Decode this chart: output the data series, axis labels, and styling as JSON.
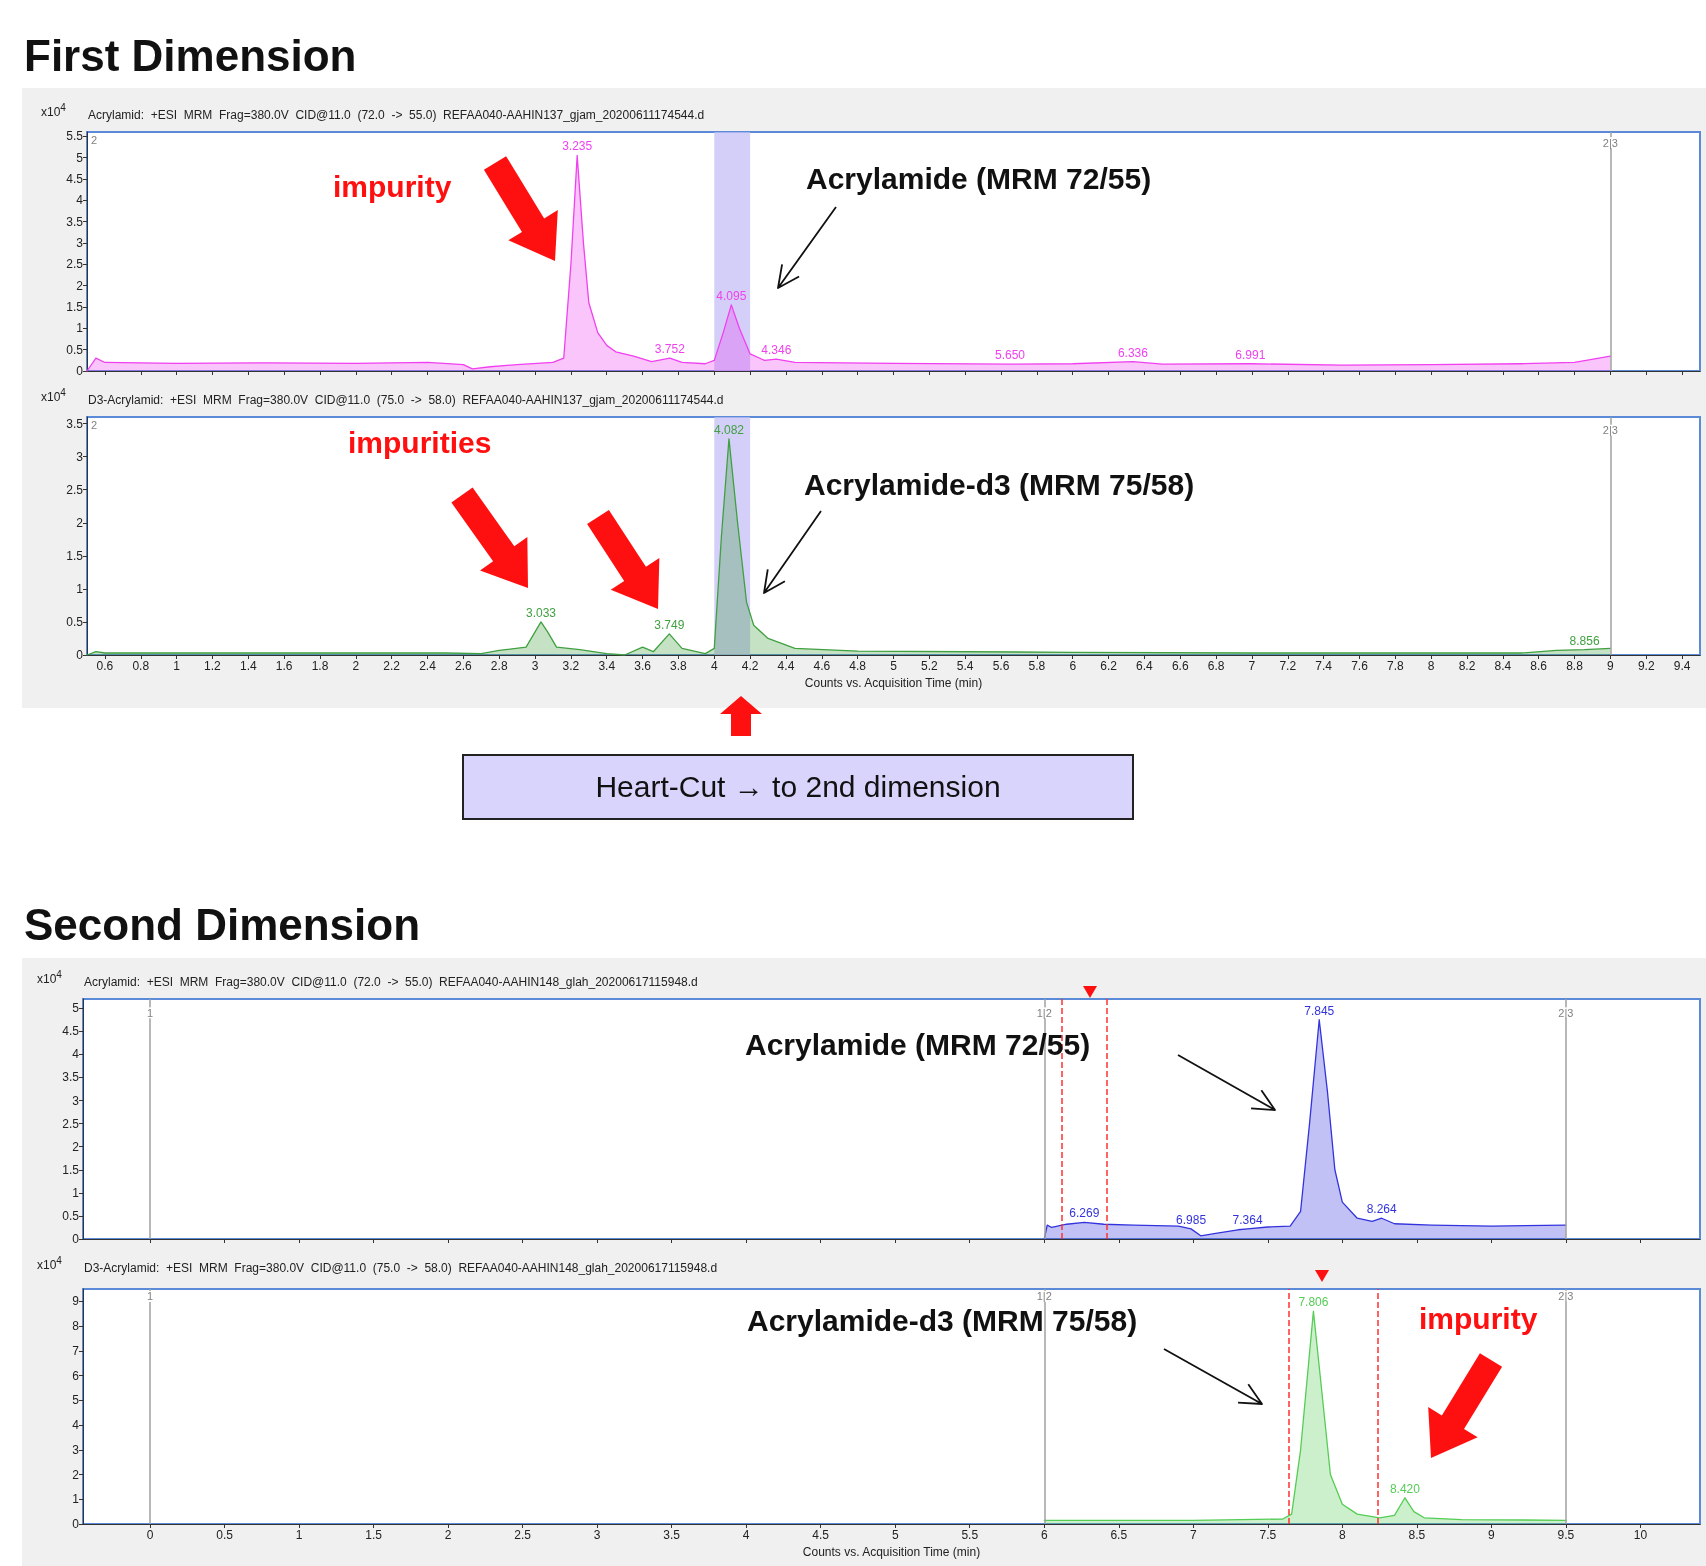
{
  "chart_data": [
    {
      "type": "area",
      "title": "Acrylamid:  +ESI  MRM  Frag=380.0V  CID@11.0  (72.0  ->  55.0)  REFAA040-AAHIN137_gjam_20200611174544.d",
      "ylabel": "x10$^{4}$",
      "series": [
        {
          "color": "#f040f0",
          "x": [
            0.5,
            0.55,
            0.6,
            1.0,
            1.5,
            2.0,
            2.4,
            2.6,
            2.65,
            2.75,
            2.9,
            3.1,
            3.16,
            3.2,
            3.235,
            3.27,
            3.3,
            3.35,
            3.4,
            3.45,
            3.55,
            3.65,
            3.752,
            3.82,
            3.95,
            4.0,
            4.05,
            4.095,
            4.14,
            4.2,
            4.28,
            4.346,
            4.45,
            5.0,
            5.65,
            6.0,
            6.336,
            6.5,
            6.991,
            7.5,
            8.0,
            8.5,
            8.8,
            9.0
          ],
          "values": [
            0,
            0.3,
            0.2,
            0.18,
            0.19,
            0.18,
            0.2,
            0.15,
            0.05,
            0.1,
            0.15,
            0.2,
            0.3,
            2.5,
            5.05,
            3.0,
            1.6,
            0.9,
            0.6,
            0.45,
            0.35,
            0.22,
            0.3,
            0.2,
            0.17,
            0.25,
            0.9,
            1.55,
            1.0,
            0.4,
            0.25,
            0.28,
            0.2,
            0.18,
            0.16,
            0.17,
            0.22,
            0.16,
            0.17,
            0.14,
            0.15,
            0.17,
            0.2,
            0.35
          ]
        }
      ],
      "xlim": [
        0.5,
        9.5
      ],
      "xticks": [
        0.6,
        0.8,
        1,
        1.2,
        1.4,
        1.6,
        1.8,
        2,
        2.2,
        2.4,
        2.6,
        2.8,
        3,
        3.2,
        3.4,
        3.6,
        3.8,
        4,
        4.2,
        4.4,
        4.6,
        4.8,
        5,
        5.2,
        5.4,
        5.6,
        5.8,
        6,
        6.2,
        6.4,
        6.6,
        6.8,
        7,
        7.2,
        7.4,
        7.6,
        7.8,
        8,
        8.2,
        8.4,
        8.6,
        8.8,
        9,
        9.2,
        9.4
      ],
      "ylim": [
        0,
        5.6
      ],
      "yticks": [
        0,
        0.5,
        1,
        1.5,
        2,
        2.5,
        3,
        3.5,
        4,
        4.5,
        5,
        5.5
      ],
      "tick_labels": "y",
      "ref_lines": [
        {
          "axis": "x",
          "value": 9,
          "color": "#a0a0a0"
        }
      ],
      "bands": [
        {
          "axis": "x",
          "from": 4.0,
          "to": 4.2,
          "color": "#c4bff5"
        }
      ],
      "annotations": [
        "First Dimension",
        "impurity",
        "Acrylamide (MRM 72/55)",
        "2",
        {
          "text": "2|3",
          "x": 9,
          "y": 5.35
        },
        {
          "text": "3.235",
          "x": 3.235,
          "y": 5.05
        },
        {
          "text": "3.752",
          "x": 3.752,
          "y": 0.3
        },
        {
          "text": "4.095",
          "x": 4.095,
          "y": 1.55
        },
        {
          "text": "4.346",
          "x": 4.346,
          "y": 0.28
        },
        {
          "text": "5.650",
          "x": 5.65,
          "y": 0.16
        },
        {
          "text": "6.336",
          "x": 6.336,
          "y": 0.22
        },
        {
          "text": "6.991",
          "x": 6.991,
          "y": 0.17
        }
      ]
    },
    {
      "type": "area",
      "title": "D3-Acrylamid:  +ESI  MRM  Frag=380.0V  CID@11.0  (75.0  ->  58.0)  REFAA040-AAHIN137_gjam_20200611174544.d",
      "ylabel": "x10$^{4}$",
      "xlabel": "Counts vs. Acquisition Time (min)",
      "series": [
        {
          "color": "#40a040",
          "x": [
            0.5,
            0.55,
            0.6,
            1.5,
            2.5,
            2.7,
            2.8,
            2.95,
            3.0,
            3.033,
            3.07,
            3.12,
            3.25,
            3.4,
            3.5,
            3.6,
            3.66,
            3.749,
            3.82,
            3.95,
            4.0,
            4.04,
            4.082,
            4.13,
            4.18,
            4.22,
            4.3,
            4.45,
            4.8,
            6.0,
            7.0,
            8.0,
            8.5,
            8.7,
            8.856,
            9.0
          ],
          "values": [
            0,
            0.05,
            0.03,
            0.03,
            0.03,
            0.02,
            0.07,
            0.12,
            0.35,
            0.5,
            0.35,
            0.12,
            0.08,
            0.02,
            0.0,
            0.12,
            0.05,
            0.32,
            0.1,
            0.02,
            0.1,
            1.8,
            3.27,
            2.0,
            0.8,
            0.45,
            0.25,
            0.1,
            0.06,
            0.04,
            0.03,
            0.03,
            0.03,
            0.07,
            0.08,
            0.1
          ]
        }
      ],
      "xlim": [
        0.5,
        9.5
      ],
      "xticks": [
        0.6,
        0.8,
        1,
        1.2,
        1.4,
        1.6,
        1.8,
        2,
        2.2,
        2.4,
        2.6,
        2.8,
        3,
        3.2,
        3.4,
        3.6,
        3.8,
        4,
        4.2,
        4.4,
        4.6,
        4.8,
        5,
        5.2,
        5.4,
        5.6,
        5.8,
        6,
        6.2,
        6.4,
        6.6,
        6.8,
        7,
        7.2,
        7.4,
        7.6,
        7.8,
        8,
        8.2,
        8.4,
        8.6,
        8.8,
        9,
        9.2,
        9.4
      ],
      "ylim": [
        0,
        3.6
      ],
      "yticks": [
        0,
        0.5,
        1,
        1.5,
        2,
        2.5,
        3,
        3.5
      ],
      "ref_lines": [
        {
          "axis": "x",
          "value": 9,
          "color": "#a0a0a0"
        }
      ],
      "bands": [
        {
          "axis": "x",
          "from": 4.0,
          "to": 4.2,
          "color": "#c4bff5"
        }
      ],
      "annotations": [
        "impurities",
        "Acrylamide-d3 (MRM 75/58)",
        "Heart-Cut → to 2nd dimension",
        "2",
        {
          "text": "2|3",
          "x": 9,
          "y": 3.4
        },
        {
          "text": "3.033",
          "x": 3.033,
          "y": 0.5
        },
        {
          "text": "3.749",
          "x": 3.749,
          "y": 0.32
        },
        {
          "text": "4.082",
          "x": 4.082,
          "y": 3.27
        },
        {
          "text": "8.856",
          "x": 8.856,
          "y": 0.08
        }
      ]
    },
    {
      "type": "area",
      "title": "Acrylamid:  +ESI  MRM  Frag=380.0V  CID@11.0  (72.0  ->  55.0)  REFAA040-AAHIN148_glah_20200617115948.d",
      "ylabel": "x10$^{4}$",
      "series": [
        {
          "color": "#3333dd",
          "x": [
            6.0,
            6.02,
            6.05,
            6.15,
            6.269,
            6.4,
            6.6,
            6.9,
            6.985,
            7.05,
            7.15,
            7.3,
            7.364,
            7.5,
            7.65,
            7.72,
            7.78,
            7.845,
            7.9,
            7.95,
            8.0,
            8.1,
            8.2,
            8.264,
            8.35,
            8.6,
            9.0,
            9.5
          ],
          "values": [
            0.0,
            0.3,
            0.25,
            0.32,
            0.36,
            0.32,
            0.3,
            0.28,
            0.22,
            0.07,
            0.12,
            0.2,
            0.22,
            0.26,
            0.28,
            0.6,
            2.5,
            4.75,
            3.2,
            1.5,
            0.8,
            0.45,
            0.38,
            0.45,
            0.33,
            0.3,
            0.28,
            0.3
          ]
        }
      ],
      "xlim": [
        -0.45,
        10.4
      ],
      "xticks": [
        0,
        0.5,
        1,
        1.5,
        2,
        2.5,
        3,
        3.5,
        4,
        4.5,
        5,
        5.5,
        6,
        6.5,
        7,
        7.5,
        8,
        8.5,
        9,
        9.5,
        10
      ],
      "ylim": [
        0,
        5.2
      ],
      "yticks": [
        0,
        0.5,
        1,
        1.5,
        2,
        2.5,
        3,
        3.5,
        4,
        4.5,
        5
      ],
      "tick_labels": "y",
      "ref_lines": [
        {
          "axis": "x",
          "value": 0,
          "color": "#a0a0a0"
        },
        {
          "axis": "x",
          "value": 6,
          "color": "#a0a0a0"
        },
        {
          "axis": "x",
          "value": 9.5,
          "color": "#a0a0a0"
        },
        {
          "axis": "x",
          "value": 6.12,
          "color": "#ff3030",
          "line_style": "dashed"
        },
        {
          "axis": "x",
          "value": 6.42,
          "color": "#ff3030",
          "line_style": "dashed"
        }
      ],
      "annotations": [
        "Second Dimension",
        "Acrylamide (MRM 72/55)",
        {
          "text": "1",
          "x": 0,
          "y": 4.9
        },
        {
          "text": "1|2",
          "x": 6,
          "y": 4.9
        },
        {
          "text": "2|3",
          "x": 9.5,
          "y": 4.9
        },
        {
          "text": "6.269",
          "x": 6.269,
          "y": 0.36
        },
        {
          "text": "6.985",
          "x": 6.985,
          "y": 0.22
        },
        {
          "text": "7.364",
          "x": 7.364,
          "y": 0.22
        },
        {
          "text": "7.845",
          "x": 7.845,
          "y": 4.75
        },
        {
          "text": "8.264",
          "x": 8.264,
          "y": 0.45
        }
      ]
    },
    {
      "type": "area",
      "title": "D3-Acrylamid:  +ESI  MRM  Frag=380.0V  CID@11.0  (75.0  ->  58.0)  REFAA040-AAHIN148_glah_20200617115948.d",
      "ylabel": "x10$^{4}$",
      "xlabel": "Counts vs. Acquisition Time (min)",
      "series": [
        {
          "color": "#55cc55",
          "x": [
            6.0,
            6.5,
            7.0,
            7.6,
            7.66,
            7.72,
            7.806,
            7.86,
            7.92,
            8.0,
            8.1,
            8.25,
            8.35,
            8.42,
            8.48,
            8.55,
            8.8,
            9.5
          ],
          "values": [
            0.15,
            0.15,
            0.15,
            0.2,
            0.4,
            3.0,
            8.6,
            5.5,
            2.0,
            0.8,
            0.4,
            0.25,
            0.35,
            1.06,
            0.5,
            0.25,
            0.18,
            0.15
          ]
        }
      ],
      "xlim": [
        -0.45,
        10.4
      ],
      "xticks": [
        0,
        0.5,
        1,
        1.5,
        2,
        2.5,
        3,
        3.5,
        4,
        4.5,
        5,
        5.5,
        6,
        6.5,
        7,
        7.5,
        8,
        8.5,
        9,
        9.5,
        10
      ],
      "ylim": [
        0,
        9.5
      ],
      "yticks": [
        0,
        1,
        2,
        3,
        4,
        5,
        6,
        7,
        8,
        9
      ],
      "ref_lines": [
        {
          "axis": "x",
          "value": 0,
          "color": "#a0a0a0"
        },
        {
          "axis": "x",
          "value": 6,
          "color": "#a0a0a0"
        },
        {
          "axis": "x",
          "value": 9.5,
          "color": "#a0a0a0"
        },
        {
          "axis": "x",
          "value": 7.64,
          "color": "#ff3030",
          "line_style": "dashed"
        },
        {
          "axis": "x",
          "value": 8.24,
          "color": "#ff3030",
          "line_style": "dashed"
        }
      ],
      "annotations": [
        "Acrylamide-d3 (MRM 75/58)",
        "impurity",
        {
          "text": "1",
          "x": 0,
          "y": 9.2
        },
        {
          "text": "1|2",
          "x": 6,
          "y": 9.2
        },
        {
          "text": "2|3",
          "x": 9.5,
          "y": 9.2
        },
        {
          "text": "7.806",
          "x": 7.806,
          "y": 8.6
        },
        {
          "text": "8.420",
          "x": 8.42,
          "y": 1.06
        }
      ]
    }
  ]
}
